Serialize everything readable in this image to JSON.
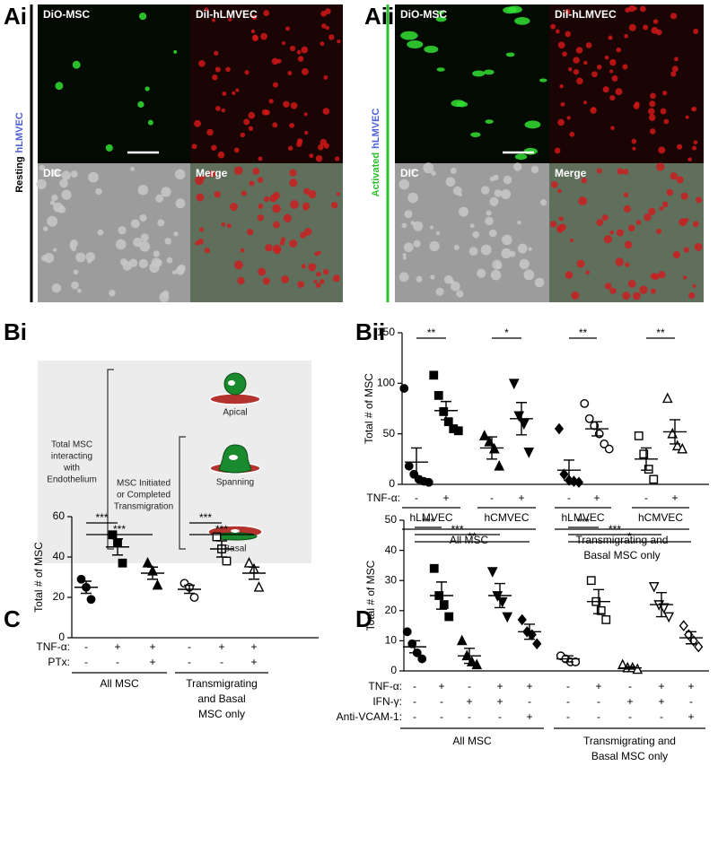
{
  "panel_labels": [
    "Ai",
    "Aii",
    "Bi",
    "Bii",
    "C",
    "D"
  ],
  "images": [
    {
      "side_label": [
        "Resting",
        "hLMVEC"
      ],
      "quadrants": [
        "DiO-MSC",
        "DiI-hLMVEC",
        "DIC",
        "Merge"
      ]
    },
    {
      "side_label": [
        "Activated",
        "hLMVEC"
      ],
      "quadrants": [
        "DiO-MSC",
        "DiI-hLMVEC",
        "DIC",
        "Merge"
      ]
    }
  ],
  "diagram": {
    "outer": [
      "Total MSC",
      "interacting",
      "with",
      "Endothelium"
    ],
    "inner": [
      "MSC Initiated",
      "or Completed",
      "Transmigration"
    ],
    "cells": [
      "Apical",
      "Spanning",
      "Basal"
    ]
  },
  "chart_data": [
    {
      "type": "dot",
      "ylabel": "Total # of MSC",
      "color": "#000000",
      "ylim": [
        0,
        150
      ],
      "yticks": [
        0,
        50,
        100,
        150
      ],
      "groups": [
        {
          "marker": "circle",
          "filled": true,
          "points": [
            95,
            18,
            10,
            5,
            3,
            2
          ],
          "mean": 22,
          "sem": 14
        },
        {
          "marker": "square",
          "filled": true,
          "points": [
            108,
            88,
            72,
            62,
            55,
            53
          ],
          "mean": 73,
          "sem": 9
        },
        {
          "marker": "triangle",
          "filled": true,
          "points": [
            48,
            42,
            35,
            18
          ],
          "mean": 36,
          "sem": 11
        },
        {
          "marker": "triangle-down",
          "filled": true,
          "points": [
            100,
            68,
            60,
            32
          ],
          "mean": 65,
          "sem": 16
        },
        {
          "marker": "diamond",
          "filled": true,
          "points": [
            55,
            10,
            4,
            3,
            2
          ],
          "mean": 14,
          "sem": 10
        },
        {
          "marker": "circle",
          "filled": false,
          "points": [
            80,
            65,
            58,
            50,
            40,
            35
          ],
          "mean": 55,
          "sem": 7
        },
        {
          "marker": "square",
          "filled": false,
          "points": [
            48,
            30,
            15,
            5
          ],
          "mean": 25,
          "sem": 11
        },
        {
          "marker": "triangle",
          "filled": false,
          "points": [
            85,
            50,
            38,
            35
          ],
          "mean": 52,
          "sem": 12
        }
      ],
      "rows": [
        {
          "label": "TNF-α:",
          "values": [
            "-",
            "+",
            "-",
            "+",
            "-",
            "+",
            "-",
            "+"
          ]
        }
      ],
      "subgroups": [
        {
          "label": [
            "hLMVEC"
          ],
          "groups": [
            0,
            1
          ]
        },
        {
          "label": [
            "hCMVEC"
          ],
          "groups": [
            2,
            3
          ]
        },
        {
          "label": [
            "hLMVEC"
          ],
          "groups": [
            4,
            5
          ]
        },
        {
          "label": [
            "hCMVEC"
          ],
          "groups": [
            6,
            7
          ]
        }
      ],
      "supergroups": [
        {
          "label": [
            "All MSC"
          ],
          "groups": [
            0,
            3
          ]
        },
        {
          "label": [
            "Transmigrating and",
            "Basal MSC only"
          ],
          "groups": [
            4,
            7
          ]
        }
      ],
      "significance": [
        {
          "groups": [
            0,
            1
          ],
          "label": "**"
        },
        {
          "groups": [
            2,
            3
          ],
          "label": "*"
        },
        {
          "groups": [
            4,
            5
          ],
          "label": "**"
        },
        {
          "groups": [
            6,
            7
          ],
          "label": "**"
        }
      ]
    },
    {
      "type": "dot",
      "ylabel": "Total # of MSC",
      "color": "#000000",
      "ylim": [
        0,
        60
      ],
      "yticks": [
        0,
        20,
        40,
        60
      ],
      "groups": [
        {
          "marker": "circle",
          "filled": true,
          "points": [
            29,
            25,
            19
          ],
          "mean": 25,
          "sem": 3
        },
        {
          "marker": "square",
          "filled": true,
          "points": [
            51,
            47,
            37
          ],
          "mean": 45,
          "sem": 4
        },
        {
          "marker": "triangle",
          "filled": true,
          "points": [
            37,
            33,
            26
          ],
          "mean": 32,
          "sem": 3
        },
        {
          "marker": "circle",
          "filled": false,
          "points": [
            27,
            25,
            20
          ],
          "mean": 24,
          "sem": 2
        },
        {
          "marker": "square",
          "filled": false,
          "points": [
            50,
            44,
            38
          ],
          "mean": 44,
          "sem": 4
        },
        {
          "marker": "triangle",
          "filled": false,
          "points": [
            37,
            34,
            25
          ],
          "mean": 32,
          "sem": 3
        }
      ],
      "rows": [
        {
          "label": "TNF-α:",
          "values": [
            "-",
            "+",
            "+",
            "-",
            "+",
            "+"
          ]
        },
        {
          "label": "PTx:",
          "values": [
            "-",
            "-",
            "+",
            "-",
            "-",
            "+"
          ]
        }
      ],
      "supergroups": [
        {
          "label": [
            "All MSC"
          ],
          "groups": [
            0,
            2
          ]
        },
        {
          "label": [
            "Transmigrating",
            "and Basal",
            "MSC only"
          ],
          "groups": [
            3,
            5
          ]
        }
      ],
      "significance": [
        {
          "groups": [
            0,
            1
          ],
          "label": "***"
        },
        {
          "groups": [
            0,
            2
          ],
          "label": "***"
        },
        {
          "groups": [
            3,
            4
          ],
          "label": "***"
        },
        {
          "groups": [
            3,
            5
          ],
          "label": "***"
        }
      ]
    },
    {
      "type": "dot",
      "ylabel": "Total # of MSC",
      "color": "#000000",
      "ylim": [
        0,
        50
      ],
      "yticks": [
        0,
        10,
        20,
        30,
        40,
        50
      ],
      "groups": [
        {
          "marker": "circle",
          "filled": true,
          "points": [
            13,
            9,
            6,
            4
          ],
          "mean": 8,
          "sem": 2
        },
        {
          "marker": "square",
          "filled": true,
          "points": [
            34,
            25,
            22,
            18
          ],
          "mean": 25,
          "sem": 4.5
        },
        {
          "marker": "triangle",
          "filled": true,
          "points": [
            10,
            5,
            3,
            2
          ],
          "mean": 5,
          "sem": 2.5
        },
        {
          "marker": "triangle-down",
          "filled": true,
          "points": [
            33,
            25,
            23,
            18
          ],
          "mean": 25,
          "sem": 4
        },
        {
          "marker": "diamond",
          "filled": true,
          "points": [
            17,
            13,
            12,
            9
          ],
          "mean": 13,
          "sem": 2.5
        },
        {
          "marker": "circle",
          "filled": false,
          "points": [
            5,
            4,
            3,
            3
          ],
          "mean": 4,
          "sem": 1
        },
        {
          "marker": "square",
          "filled": false,
          "points": [
            30,
            23,
            20,
            17
          ],
          "mean": 23,
          "sem": 4
        },
        {
          "marker": "triangle",
          "filled": false,
          "points": [
            2,
            1,
            1,
            0.5
          ],
          "mean": 1,
          "sem": 0.4
        },
        {
          "marker": "triangle-down",
          "filled": false,
          "points": [
            28,
            22,
            21,
            18
          ],
          "mean": 22,
          "sem": 4
        },
        {
          "marker": "diamond",
          "filled": false,
          "points": [
            15,
            12,
            10,
            8
          ],
          "mean": 11,
          "sem": 2
        }
      ],
      "rows": [
        {
          "label": "TNF-α:",
          "values": [
            "-",
            "+",
            "-",
            "+",
            "+",
            "-",
            "+",
            "-",
            "+",
            "+"
          ]
        },
        {
          "label": "IFN-γ:",
          "values": [
            "-",
            "-",
            "+",
            "+",
            "-",
            "-",
            "-",
            "+",
            "+",
            "-"
          ]
        },
        {
          "label": "Anti-VCAM-1:",
          "values": [
            "-",
            "-",
            "-",
            "-",
            "+",
            "-",
            "-",
            "-",
            "-",
            "+"
          ]
        }
      ],
      "supergroups": [
        {
          "label": [
            "All MSC"
          ],
          "groups": [
            0,
            4
          ]
        },
        {
          "label": [
            "Transmigrating and",
            "Basal MSC only"
          ],
          "groups": [
            5,
            9
          ]
        }
      ],
      "significance": [
        {
          "groups": [
            0,
            1
          ],
          "label": "***"
        },
        {
          "groups": [
            0,
            3
          ],
          "label": "***"
        },
        {
          "groups": [
            0,
            4
          ],
          "label": "**"
        },
        {
          "groups": [
            5,
            6
          ],
          "label": "***"
        },
        {
          "groups": [
            5,
            8
          ],
          "label": "***"
        },
        {
          "groups": [
            5,
            9
          ],
          "label": "*"
        }
      ]
    }
  ]
}
